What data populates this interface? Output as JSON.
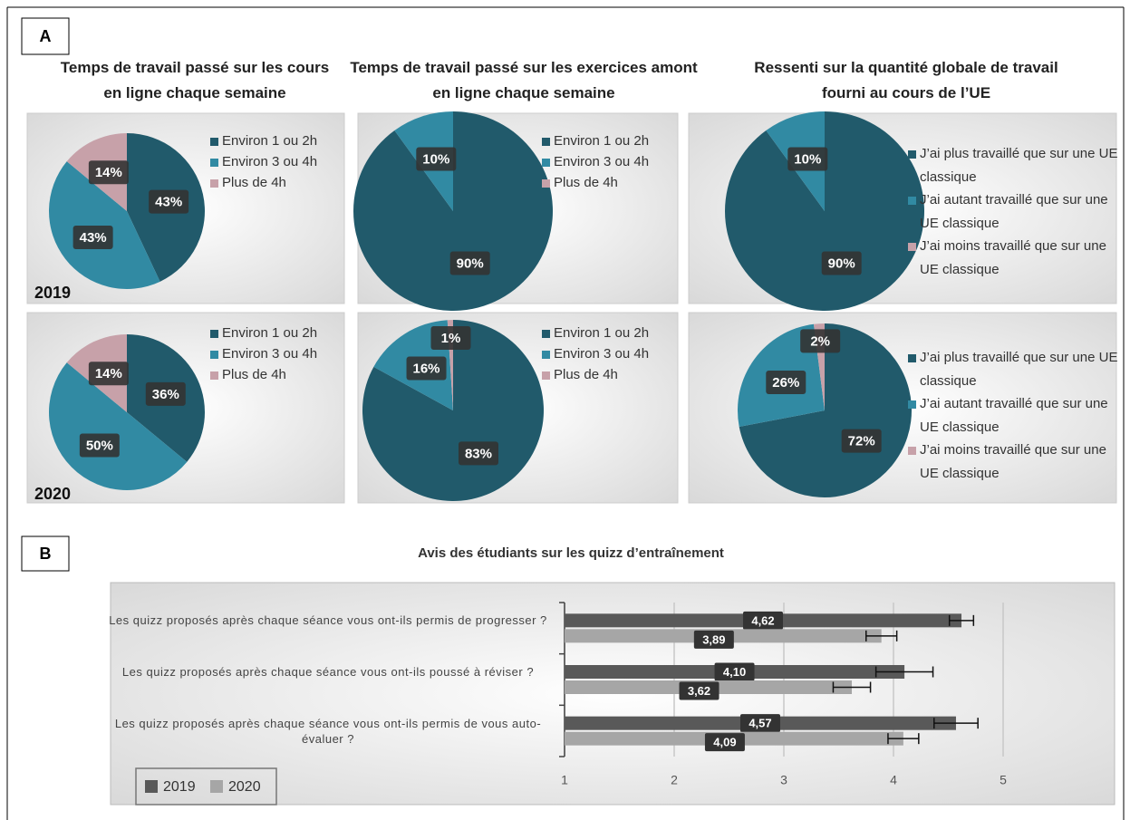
{
  "panel_labels": [
    "A",
    "B"
  ],
  "column_titles": [
    "Temps de travail passé sur les cours en ligne chaque semaine",
    "Temps de travail passé sur les exercices amont en ligne chaque semaine",
    "Ressenti sur la quantité globale de travail fourni au cours de l’UE"
  ],
  "chart_data": [
    {
      "type": "pie",
      "label": "2019",
      "categories": [
        "Environ 1 ou 2h",
        "Environ 3 ou 4h",
        "Plus de 4h"
      ],
      "values": [
        43,
        43,
        14
      ],
      "value_labels": [
        "43%",
        "43%",
        "14%"
      ],
      "colors": [
        "#215a6b",
        "#318aa3",
        "#c7a1a9"
      ]
    },
    {
      "type": "pie",
      "categories": [
        "Environ 1 ou 2h",
        "Environ 3 ou 4h",
        "Plus de 4h"
      ],
      "values": [
        90,
        10,
        0
      ],
      "value_labels": [
        "90%",
        "10%",
        null
      ],
      "colors": [
        "#215a6b",
        "#318aa3",
        "#c7a1a9"
      ]
    },
    {
      "type": "pie",
      "categories": [
        "J’ai plus travaillé que sur une UE classique",
        "J’ai autant travaillé que sur une UE classique",
        "J’ai moins travaillé que sur une UE classique"
      ],
      "values": [
        90,
        10,
        0
      ],
      "value_labels": [
        "90%",
        "10%",
        null
      ],
      "colors": [
        "#215a6b",
        "#318aa3",
        "#c7a1a9"
      ]
    },
    {
      "type": "pie",
      "label": "2020",
      "categories": [
        "Environ 1 ou 2h",
        "Environ 3 ou 4h",
        "Plus de 4h"
      ],
      "values": [
        36,
        50,
        14
      ],
      "value_labels": [
        "36%",
        "50%",
        "14%"
      ],
      "colors": [
        "#215a6b",
        "#318aa3",
        "#c7a1a9"
      ]
    },
    {
      "type": "pie",
      "categories": [
        "Environ 1 ou 2h",
        "Environ 3 ou 4h",
        "Plus de 4h"
      ],
      "values": [
        83,
        16,
        1
      ],
      "value_labels": [
        "83%",
        "16%",
        "1%"
      ],
      "colors": [
        "#215a6b",
        "#318aa3",
        "#c7a1a9"
      ]
    },
    {
      "type": "pie",
      "categories": [
        "J’ai plus travaillé que sur une UE classique",
        "J’ai autant travaillé que sur une UE classique",
        "J’ai moins travaillé que sur une UE classique"
      ],
      "values": [
        72,
        26,
        2
      ],
      "value_labels": [
        "72%",
        "26%",
        "2%"
      ],
      "colors": [
        "#215a6b",
        "#318aa3",
        "#c7a1a9"
      ]
    },
    {
      "type": "bar",
      "orientation": "horizontal",
      "title": "Avis des étudiants sur les quizz d’entraînement",
      "categories": [
        "Les quizz proposés après chaque séance vous ont-ils permis de progresser ?",
        "Les quizz proposés après chaque séance vous ont-ils poussé à réviser ?",
        "Les quizz proposés après chaque séance vous ont-ils permis de vous auto-évaluer ?"
      ],
      "series": [
        {
          "name": "2019",
          "color": "#595959",
          "values": [
            4.62,
            4.1,
            4.57
          ],
          "value_labels": [
            "4,62",
            "4,10",
            "4,57"
          ],
          "errors": [
            0.11,
            0.26,
            0.2
          ]
        },
        {
          "name": "2020",
          "color": "#a6a6a6",
          "values": [
            3.89,
            3.62,
            4.09
          ],
          "value_labels": [
            "3,89",
            "3,62",
            "4,09"
          ],
          "errors": [
            0.14,
            0.17,
            0.14
          ]
        }
      ],
      "xlim": [
        1,
        5
      ],
      "xticks": [
        1,
        2,
        3,
        4,
        5
      ],
      "grid": true,
      "legend": "bottom-left"
    }
  ]
}
